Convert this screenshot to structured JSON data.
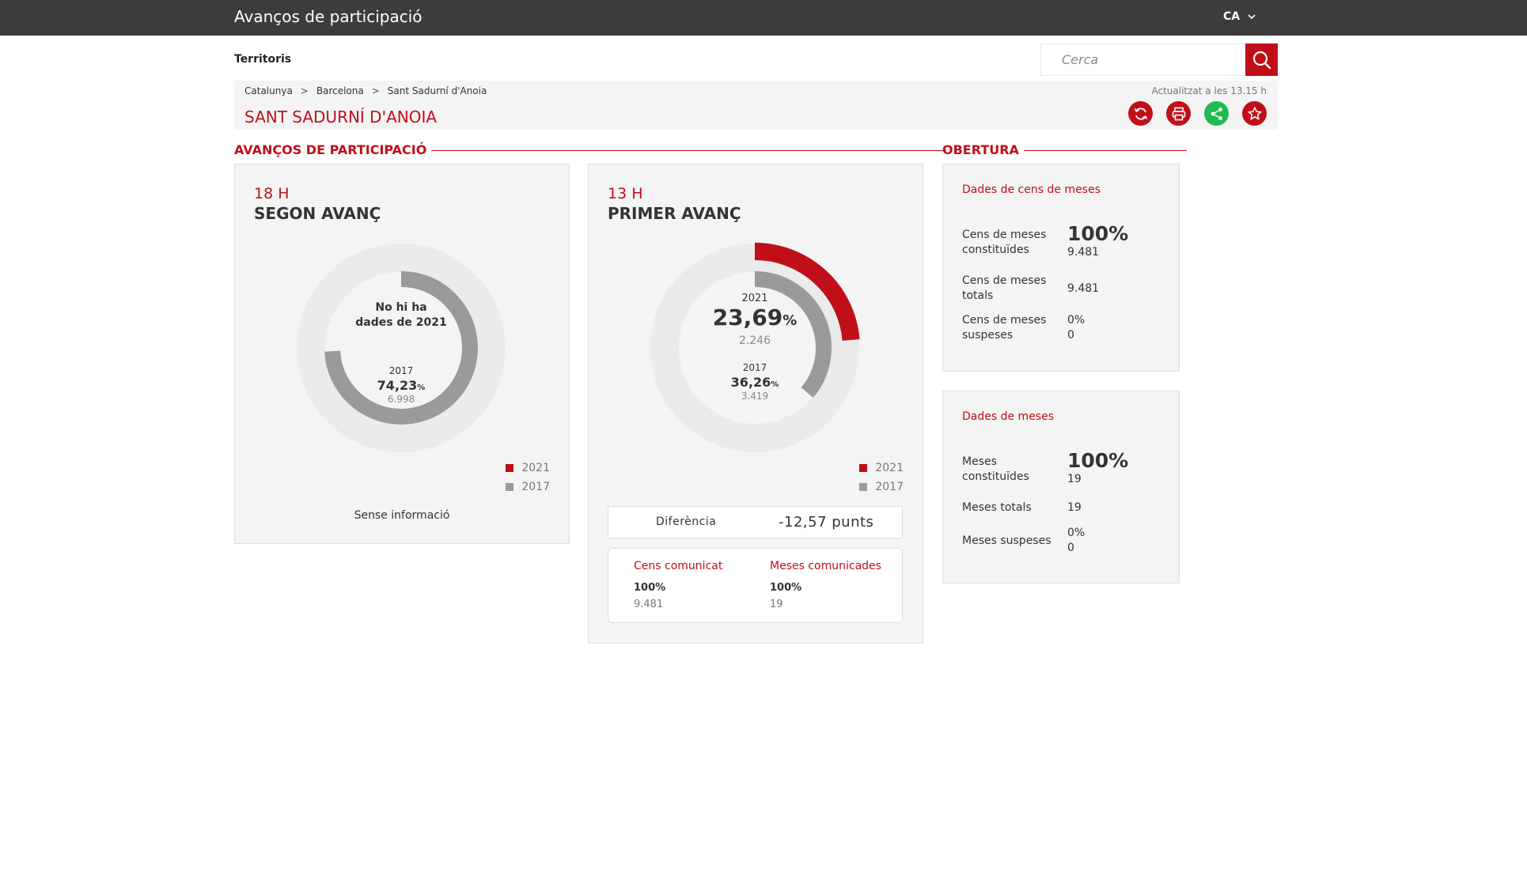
{
  "header": {
    "title": "Avanços de participació",
    "language": "CA"
  },
  "nav": {
    "territories_label": "Territoris"
  },
  "search": {
    "placeholder": "Cerca"
  },
  "breadcrumb": [
    "Catalunya",
    "Barcelona",
    "Sant Sadurní d'Anoia"
  ],
  "breadcrumb_separator": ">",
  "updated": "Actualitzat a les 13.15 h",
  "place": "SANT SADURNÍ D'ANOIA",
  "actions": [
    {
      "icon": "refresh-icon",
      "color": "#c00f19"
    },
    {
      "icon": "print-icon",
      "color": "#c00f19"
    },
    {
      "icon": "share-icon",
      "color": "#1fbb52"
    },
    {
      "icon": "star-icon",
      "color": "#c00f19"
    }
  ],
  "sections": {
    "advances": "AVANÇOS DE PARTICIPACIÓ",
    "opening": "OBERTURA"
  },
  "colors": {
    "accent": "#c00f19",
    "series_2017": "#9a9a9a",
    "track": "#ebebeb",
    "share": "#1fbb52"
  },
  "advance2": {
    "hour": "18 H",
    "label": "SEGON AVANÇ",
    "no_data": [
      "No hi ha",
      "dades de 2021"
    ],
    "y2017": {
      "year": "2017",
      "percent": "74,23",
      "percent_sign": "%",
      "count": "6.998"
    },
    "legend": [
      "2021",
      "2017"
    ],
    "footer": "Sense informació"
  },
  "advance1": {
    "hour": "13 H",
    "label": "PRIMER AVANÇ",
    "y2021": {
      "year": "2021",
      "percent": "23,69",
      "percent_sign": "%",
      "count": "2.246"
    },
    "y2017": {
      "year": "2017",
      "percent": "36,26",
      "percent_sign": "%",
      "count": "3.419"
    },
    "legend": [
      "2021",
      "2017"
    ],
    "difference_label": "Diferència",
    "difference_value": "-12,57 punts",
    "census_title": "Cens comunicat",
    "census_percent": "100%",
    "census_count": "9.481",
    "tables_title": "Meses comunicades",
    "tables_percent": "100%",
    "tables_count": "19"
  },
  "opening": {
    "census": {
      "title": "Dades de cens de meses",
      "rows": [
        {
          "label": "Cens de meses constituïdes",
          "percent": "100%",
          "value": "9.481"
        },
        {
          "label": "Cens de meses totals",
          "value": "9.481"
        },
        {
          "label": "Cens de meses suspeses",
          "percent": "0%",
          "value": "0"
        }
      ]
    },
    "tables": {
      "title": "Dades de meses",
      "rows": [
        {
          "label": "Meses constituïdes",
          "percent": "100%",
          "value": "19"
        },
        {
          "label": "Meses totals",
          "value": "19"
        },
        {
          "label": "Meses suspeses",
          "percent": "0%",
          "value": "0"
        }
      ]
    }
  },
  "chart_data": [
    {
      "type": "donut",
      "title": "SEGON AVANÇ",
      "series": [
        {
          "name": "2021",
          "value": null
        },
        {
          "name": "2017",
          "value": 74.23
        }
      ]
    },
    {
      "type": "donut",
      "title": "PRIMER AVANÇ",
      "series": [
        {
          "name": "2021",
          "value": 23.69
        },
        {
          "name": "2017",
          "value": 36.26
        }
      ]
    }
  ]
}
